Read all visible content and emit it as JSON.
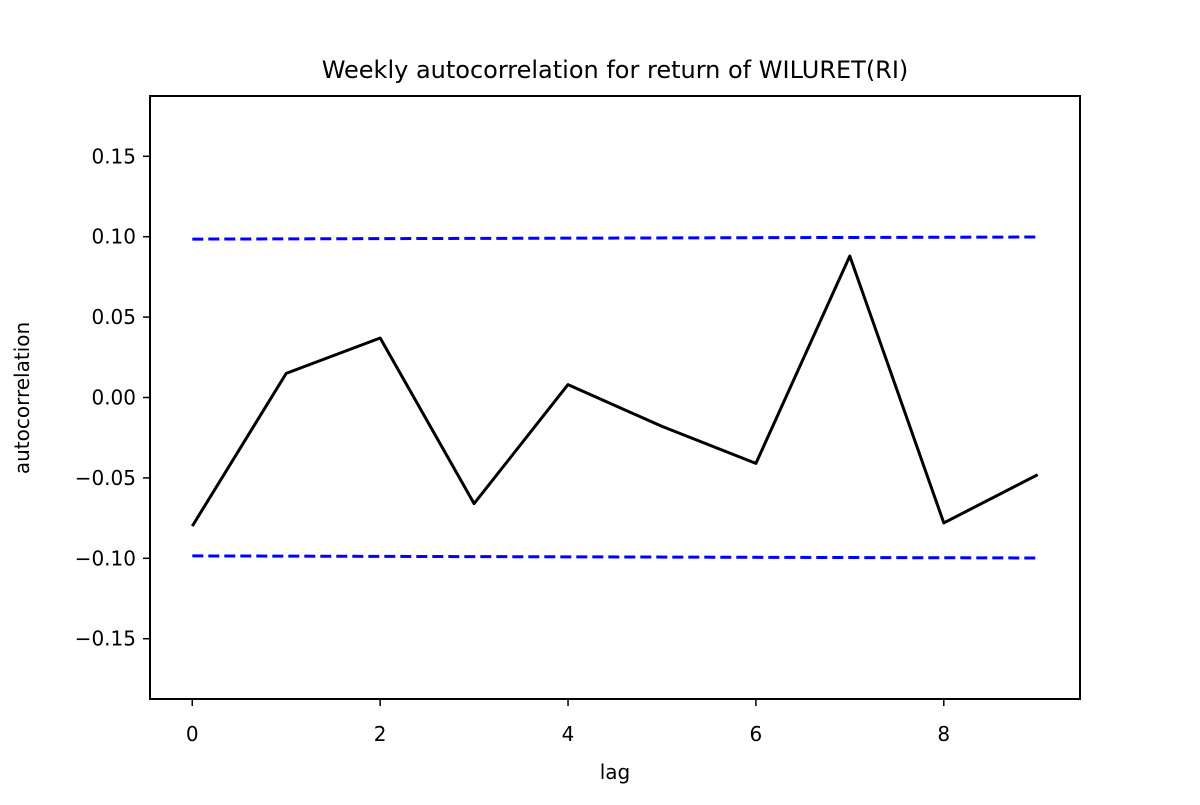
{
  "chart_data": {
    "type": "line",
    "title": "Weekly autocorrelation for  return of WILURET(RI)",
    "xlabel": "lag",
    "ylabel": "autocorrelation",
    "xlim": [
      -0.45,
      9.45
    ],
    "ylim": [
      -0.1875,
      0.1875
    ],
    "x_ticks": [
      0,
      2,
      4,
      6,
      8
    ],
    "x_tick_labels": [
      "0",
      "2",
      "4",
      "6",
      "8"
    ],
    "y_ticks": [
      -0.15,
      -0.1,
      -0.05,
      0.0,
      0.05,
      0.1,
      0.15
    ],
    "y_tick_labels": [
      "−0.15",
      "−0.10",
      "−0.05",
      "0.00",
      "0.05",
      "0.10",
      "0.15"
    ],
    "grid": false,
    "legend": false,
    "series": [
      {
        "style": "solid",
        "color": "#000000",
        "x": [
          0,
          1,
          2,
          3,
          4,
          5,
          6,
          7,
          8,
          9
        ],
        "y": [
          -0.08,
          0.015,
          0.037,
          -0.066,
          0.008,
          -0.018,
          -0.041,
          0.088,
          -0.078,
          -0.048
        ]
      },
      {
        "style": "dashed",
        "color": "#0000ff",
        "x": [
          0,
          9
        ],
        "y": [
          0.0985,
          0.0998
        ]
      },
      {
        "style": "dashed",
        "color": "#0000ff",
        "x": [
          0,
          9
        ],
        "y": [
          -0.0985,
          -0.0998
        ]
      }
    ]
  }
}
